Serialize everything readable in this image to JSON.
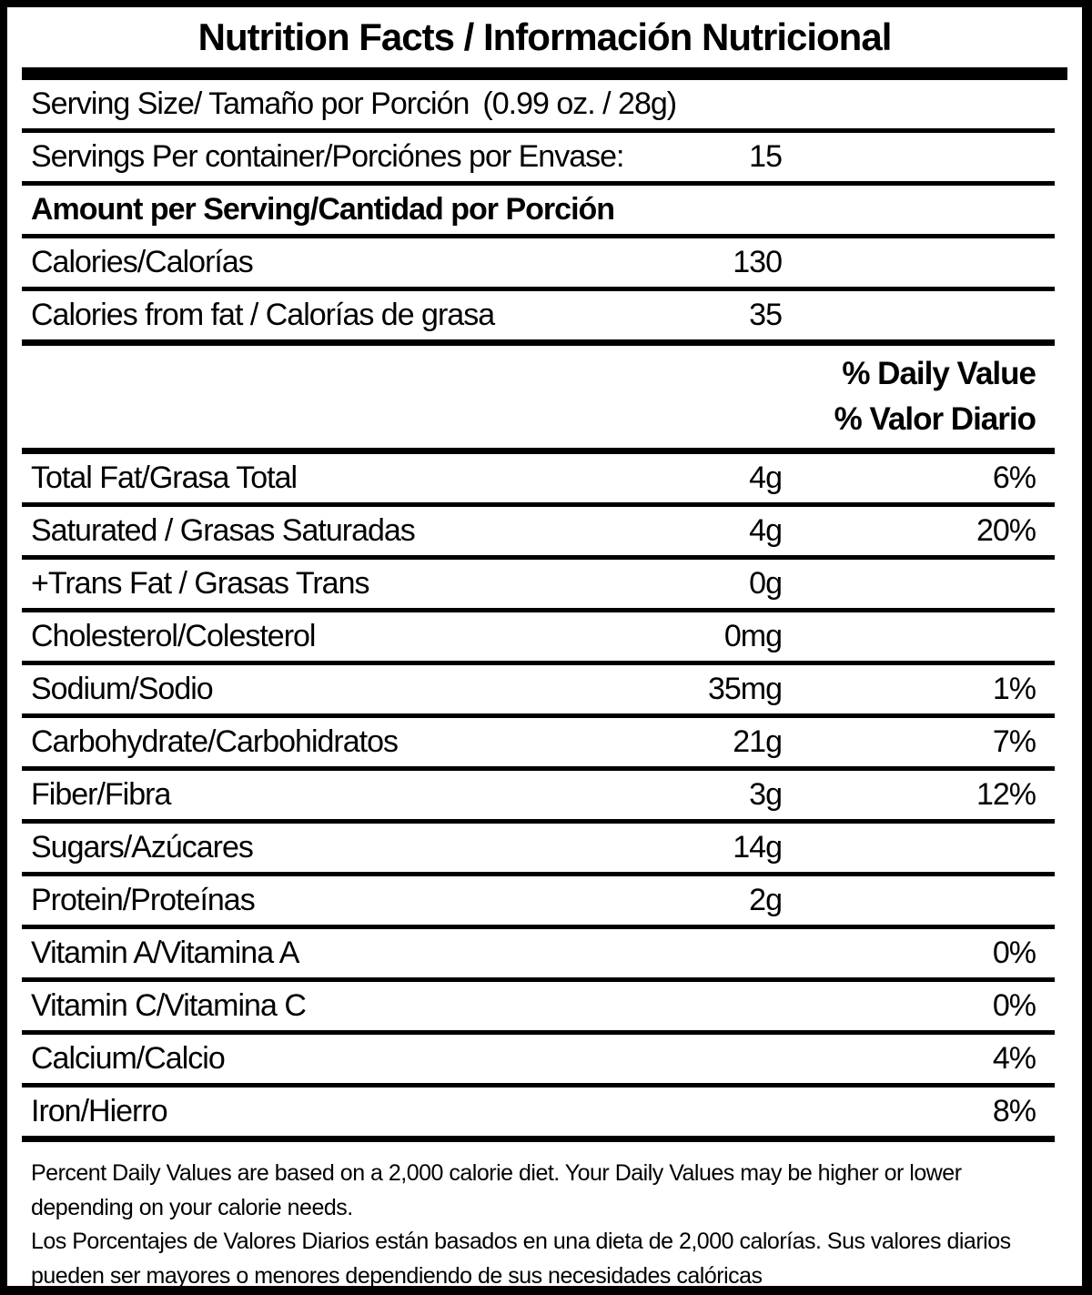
{
  "colors": {
    "text": "#000000",
    "background": "#ffffff",
    "border": "#000000"
  },
  "label": {
    "title": "Nutrition Facts / Información Nutricional",
    "serving_size": {
      "label": "Serving Size/ Tamaño por Porción",
      "value": "(0.99 oz. / 28g)"
    },
    "servings_per_container": {
      "label": "Servings Per container/Porciónes por Envase:",
      "value": "15"
    },
    "amount_per_serving_header": "Amount per Serving/Cantidad por Porción",
    "calories": {
      "label": "Calories/Calorías",
      "value": "130"
    },
    "calories_from_fat": {
      "label": "Calories from fat / Calorías de grasa",
      "value": "35"
    },
    "daily_value_header": {
      "en": "% Daily Value",
      "es": "% Valor Diario"
    },
    "nutrients": [
      {
        "label": "Total Fat/Grasa Total",
        "amount": "4g",
        "dv": "6%"
      },
      {
        "label": "Saturated / Grasas Saturadas",
        "amount": "4g",
        "dv": "20%"
      },
      {
        "label": "+Trans Fat / Grasas Trans",
        "amount": "0g",
        "dv": ""
      },
      {
        "label": "Cholesterol/Colesterol",
        "amount": "0mg",
        "dv": ""
      },
      {
        "label": "Sodium/Sodio",
        "amount": "35mg",
        "dv": "1%"
      },
      {
        "label": "Carbohydrate/Carbohidratos",
        "amount": "21g",
        "dv": "7%"
      },
      {
        "label": "Fiber/Fibra",
        "amount": "3g",
        "dv": "12%"
      },
      {
        "label": "Sugars/Azúcares",
        "amount": "14g",
        "dv": ""
      },
      {
        "label": "Protein/Proteínas",
        "amount": "2g",
        "dv": ""
      },
      {
        "label": "Vitamin A/Vitamina A",
        "amount": "",
        "dv": "0%"
      },
      {
        "label": "Vitamin C/Vitamina C",
        "amount": "",
        "dv": "0%"
      },
      {
        "label": "Calcium/Calcio",
        "amount": "",
        "dv": "4%"
      },
      {
        "label": "Iron/Hierro",
        "amount": "",
        "dv": "8%"
      }
    ],
    "footnote_en": "Percent Daily Values are based on a 2,000 calorie diet. Your Daily Values may be higher or lower depending on your calorie needs.",
    "footnote_es": "Los Porcentajes de Valores Diarios están basados en una dieta de 2,000 calorías. Sus valores diarios pueden ser mayores o menores dependiendo de sus necesidades calóricas"
  }
}
